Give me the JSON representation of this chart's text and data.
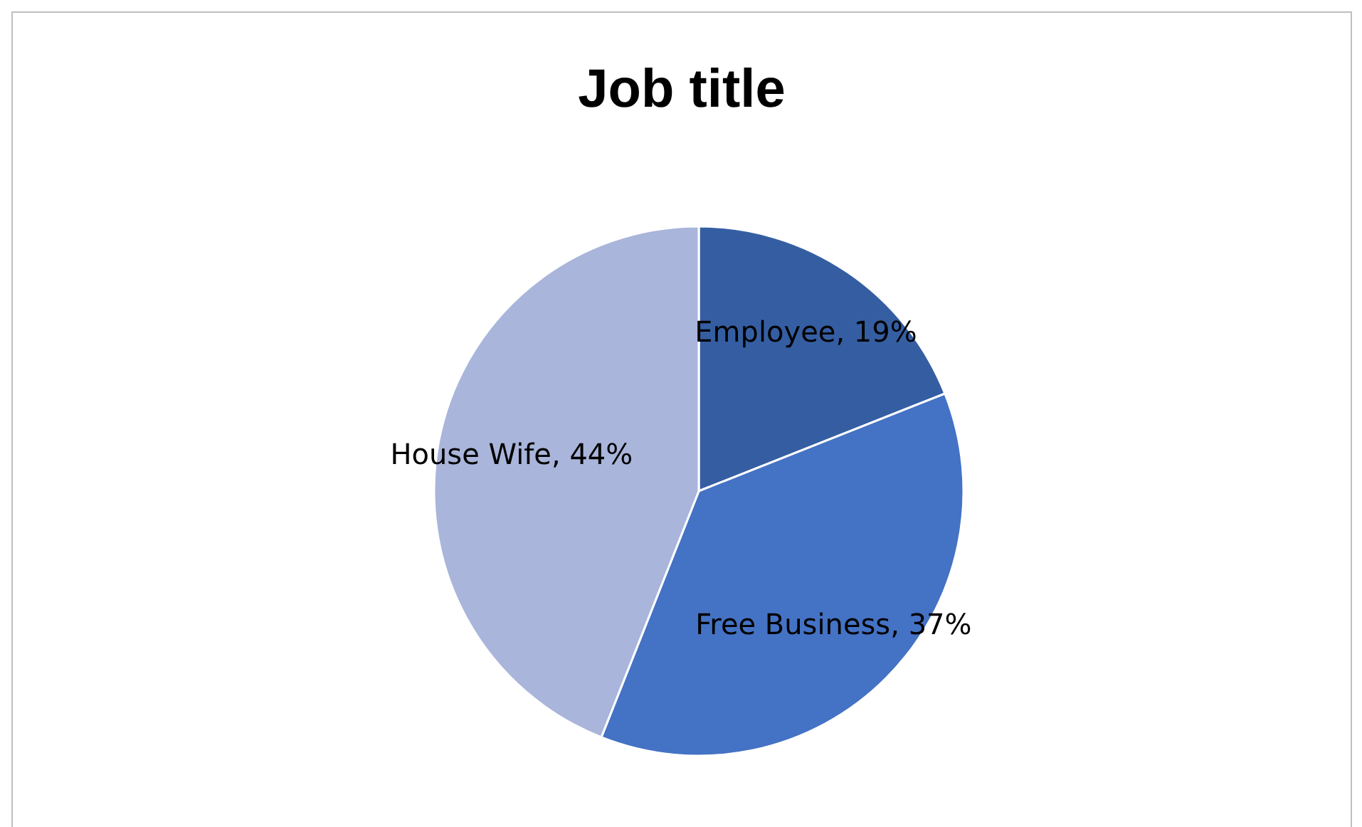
{
  "chart_data": {
    "type": "pie",
    "title": "Job title",
    "categories": [
      "Employee",
      "Free Business",
      "House Wife"
    ],
    "values": [
      19,
      37,
      44
    ],
    "colors": [
      "#355ea2",
      "#4472c4",
      "#a9b5da"
    ],
    "value_labels": [
      "19%",
      "37%",
      "44%"
    ],
    "legend": false
  }
}
